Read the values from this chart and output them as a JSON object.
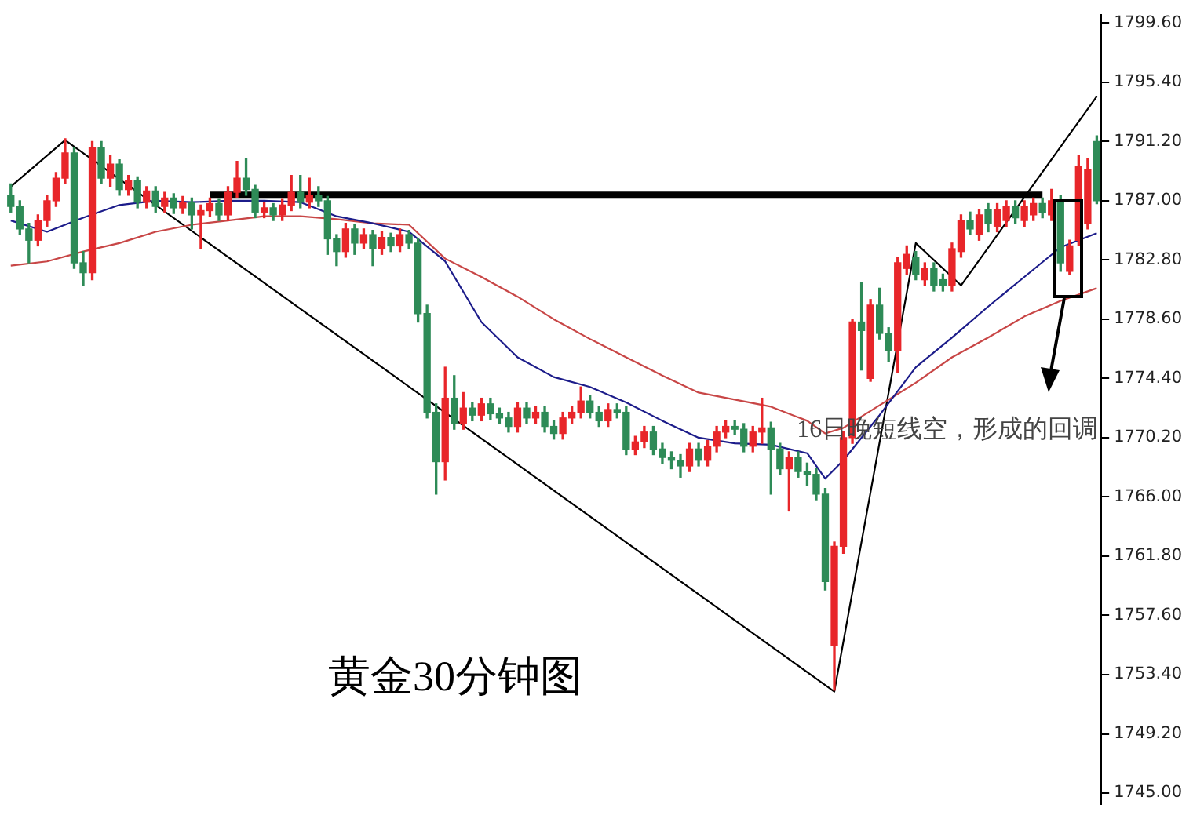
{
  "chart_data": {
    "type": "candlestick",
    "title": "黄金30分钟图",
    "annotations": [
      "16日晚短线空，形成的回调"
    ],
    "categories": [
      null,
      null,
      null,
      null,
      null,
      null,
      null,
      null,
      null,
      null,
      null,
      null,
      null,
      null,
      null,
      null,
      null,
      null,
      null,
      null,
      null,
      null,
      null,
      null,
      null,
      null,
      null,
      null,
      null,
      null,
      null,
      null,
      null,
      null,
      null,
      null,
      null,
      null,
      null,
      null,
      null,
      null,
      null,
      null,
      null,
      null,
      null,
      null,
      null,
      null,
      null,
      null,
      null,
      null,
      null,
      null,
      null,
      null,
      null,
      null,
      null,
      null,
      null,
      null,
      null,
      null,
      null,
      null,
      null,
      null,
      null,
      null,
      null,
      null,
      null,
      null,
      null,
      null,
      null,
      null,
      null,
      null,
      null,
      null,
      null,
      null,
      null,
      null,
      null,
      null,
      null,
      null,
      null,
      null,
      null,
      null,
      null,
      null,
      null,
      null,
      null,
      null,
      null,
      null,
      null,
      null,
      null,
      null,
      null,
      null,
      null,
      null,
      null,
      null,
      null,
      null,
      null,
      null,
      null,
      null,
      null
    ],
    "ohlc": [
      [
        1787.4,
        1788.2,
        1786.2,
        1786.6
      ],
      [
        1786.6,
        1787.0,
        1784.6,
        1785.0
      ],
      [
        1785.0,
        1785.4,
        1782.6,
        1784.2
      ],
      [
        1784.2,
        1786.0,
        1783.8,
        1785.6
      ],
      [
        1785.6,
        1787.4,
        1785.2,
        1787.0
      ],
      [
        1787.0,
        1789.0,
        1786.6,
        1788.6
      ],
      [
        1788.6,
        1791.4,
        1788.2,
        1790.4
      ],
      [
        1790.4,
        1790.8,
        1782.2,
        1782.6
      ],
      [
        1782.6,
        1783.4,
        1781.0,
        1781.9
      ],
      [
        1781.9,
        1791.2,
        1781.4,
        1790.8
      ],
      [
        1790.8,
        1791.2,
        1788.2,
        1788.6
      ],
      [
        1788.6,
        1790.2,
        1788.0,
        1789.6
      ],
      [
        1789.6,
        1789.9,
        1787.4,
        1787.8
      ],
      [
        1787.8,
        1788.8,
        1787.4,
        1788.4
      ],
      [
        1788.4,
        1788.7,
        1786.5,
        1786.9
      ],
      [
        1786.9,
        1788.0,
        1786.5,
        1787.7
      ],
      [
        1787.7,
        1788.0,
        1786.2,
        1786.6
      ],
      [
        1786.6,
        1787.6,
        1786.2,
        1787.2
      ],
      [
        1787.2,
        1787.5,
        1786.1,
        1786.5
      ],
      [
        1786.5,
        1787.3,
        1786.1,
        1786.9
      ],
      [
        1786.9,
        1787.2,
        1785.0,
        1786.0
      ],
      [
        1786.0,
        1786.7,
        1783.6,
        1786.3
      ],
      [
        1786.3,
        1787.2,
        1785.9,
        1786.8
      ],
      [
        1786.8,
        1787.1,
        1785.6,
        1786.0
      ],
      [
        1786.0,
        1788.0,
        1785.6,
        1787.6
      ],
      [
        1787.6,
        1789.8,
        1787.2,
        1788.6
      ],
      [
        1788.6,
        1790.0,
        1787.4,
        1787.8
      ],
      [
        1787.8,
        1788.1,
        1785.8,
        1786.2
      ],
      [
        1786.2,
        1786.9,
        1785.8,
        1786.5
      ],
      [
        1786.5,
        1786.8,
        1785.6,
        1786.0
      ],
      [
        1786.0,
        1787.1,
        1785.6,
        1786.7
      ],
      [
        1786.7,
        1788.8,
        1786.3,
        1787.6
      ],
      [
        1787.6,
        1788.8,
        1786.5,
        1786.9
      ],
      [
        1786.9,
        1788.6,
        1786.5,
        1787.4
      ],
      [
        1787.4,
        1788.0,
        1786.6,
        1787.0
      ],
      [
        1787.0,
        1787.3,
        1783.2,
        1784.3
      ],
      [
        1784.3,
        1784.6,
        1782.4,
        1783.4
      ],
      [
        1783.4,
        1785.4,
        1783.0,
        1785.0
      ],
      [
        1785.0,
        1785.3,
        1783.2,
        1784.0
      ],
      [
        1784.0,
        1785.0,
        1783.6,
        1784.6
      ],
      [
        1784.6,
        1784.9,
        1782.4,
        1783.6
      ],
      [
        1783.6,
        1784.8,
        1783.2,
        1784.4
      ],
      [
        1784.4,
        1784.7,
        1783.4,
        1783.8
      ],
      [
        1783.8,
        1785.0,
        1783.4,
        1784.6
      ],
      [
        1784.6,
        1784.9,
        1783.6,
        1784.0
      ],
      [
        1784.0,
        1784.3,
        1778.4,
        1779.0
      ],
      [
        1779.0,
        1779.6,
        1771.6,
        1772.0
      ],
      [
        1772.0,
        1772.6,
        1766.2,
        1768.5
      ],
      [
        1768.5,
        1775.2,
        1767.2,
        1773.0
      ],
      [
        1773.0,
        1774.6,
        1770.8,
        1771.2
      ],
      [
        1771.2,
        1773.4,
        1770.8,
        1772.3
      ],
      [
        1772.3,
        1772.7,
        1771.4,
        1771.8
      ],
      [
        1771.8,
        1773.0,
        1771.4,
        1772.6
      ],
      [
        1772.6,
        1773.0,
        1771.5,
        1771.9
      ],
      [
        1771.9,
        1772.3,
        1771.2,
        1771.6
      ],
      [
        1771.6,
        1772.0,
        1770.6,
        1771.0
      ],
      [
        1771.0,
        1772.7,
        1770.6,
        1772.3
      ],
      [
        1772.3,
        1772.7,
        1771.2,
        1771.6
      ],
      [
        1771.6,
        1772.4,
        1771.2,
        1772.0
      ],
      [
        1772.0,
        1772.4,
        1770.6,
        1771.0
      ],
      [
        1771.0,
        1771.4,
        1770.1,
        1770.5
      ],
      [
        1770.5,
        1772.0,
        1770.1,
        1771.6
      ],
      [
        1771.6,
        1772.4,
        1771.2,
        1772.0
      ],
      [
        1772.0,
        1773.8,
        1771.6,
        1772.8
      ],
      [
        1772.8,
        1773.2,
        1771.6,
        1772.0
      ],
      [
        1772.0,
        1772.4,
        1771.0,
        1771.4
      ],
      [
        1771.4,
        1772.6,
        1771.0,
        1772.2
      ],
      [
        1772.2,
        1772.6,
        1771.6,
        1772.0
      ],
      [
        1772.0,
        1772.4,
        1769.0,
        1769.4
      ],
      [
        1769.4,
        1770.3,
        1769.0,
        1769.9
      ],
      [
        1769.9,
        1771.0,
        1769.5,
        1770.6
      ],
      [
        1770.6,
        1771.0,
        1769.0,
        1769.4
      ],
      [
        1769.4,
        1769.8,
        1768.4,
        1768.8
      ],
      [
        1768.8,
        1769.2,
        1768.0,
        1768.6
      ],
      [
        1768.6,
        1769.0,
        1767.4,
        1768.2
      ],
      [
        1768.2,
        1769.8,
        1767.8,
        1769.4
      ],
      [
        1769.4,
        1769.8,
        1768.2,
        1768.6
      ],
      [
        1768.6,
        1770.0,
        1768.2,
        1769.6
      ],
      [
        1769.6,
        1771.0,
        1769.2,
        1770.6
      ],
      [
        1770.6,
        1771.4,
        1770.2,
        1771.0
      ],
      [
        1771.0,
        1771.4,
        1770.4,
        1770.8
      ],
      [
        1770.8,
        1771.2,
        1769.2,
        1769.6
      ],
      [
        1769.6,
        1771.0,
        1769.2,
        1770.6
      ],
      [
        1770.6,
        1773.0,
        1769.8,
        1770.9
      ],
      [
        1770.9,
        1771.3,
        1766.2,
        1769.4
      ],
      [
        1769.4,
        1769.8,
        1767.6,
        1768.0
      ],
      [
        1768.0,
        1769.2,
        1765.0,
        1768.8
      ],
      [
        1768.8,
        1769.2,
        1767.4,
        1767.8
      ],
      [
        1767.8,
        1768.4,
        1766.8,
        1767.6
      ],
      [
        1767.6,
        1768.0,
        1765.8,
        1766.2
      ],
      [
        1766.2,
        1766.6,
        1759.4,
        1760.0
      ],
      [
        1755.5,
        1762.8,
        1752.3,
        1762.5
      ],
      [
        1762.5,
        1770.6,
        1762.0,
        1770.2
      ],
      [
        1770.2,
        1778.6,
        1769.8,
        1778.4
      ],
      [
        1778.4,
        1781.2,
        1775.0,
        1777.8
      ],
      [
        1774.4,
        1780.0,
        1774.2,
        1779.6
      ],
      [
        1779.6,
        1780.8,
        1777.2,
        1777.6
      ],
      [
        1777.6,
        1778.0,
        1775.6,
        1776.4
      ],
      [
        1776.4,
        1783.0,
        1774.8,
        1782.6
      ],
      [
        1782.2,
        1783.8,
        1781.8,
        1783.2
      ],
      [
        1783.0,
        1783.4,
        1781.4,
        1781.8
      ],
      [
        1781.4,
        1782.6,
        1781.0,
        1782.2
      ],
      [
        1782.2,
        1782.6,
        1780.6,
        1781.0
      ],
      [
        1781.4,
        1781.8,
        1780.6,
        1781.0
      ],
      [
        1781.0,
        1784.0,
        1780.6,
        1783.6
      ],
      [
        1783.4,
        1786.0,
        1783.0,
        1785.6
      ],
      [
        1785.6,
        1786.2,
        1784.6,
        1785.0
      ],
      [
        1784.6,
        1786.4,
        1784.2,
        1786.0
      ],
      [
        1786.4,
        1786.8,
        1784.8,
        1785.4
      ],
      [
        1785.2,
        1786.8,
        1784.8,
        1786.4
      ],
      [
        1785.6,
        1787.0,
        1785.2,
        1786.6
      ],
      [
        1786.6,
        1787.0,
        1785.4,
        1785.8
      ],
      [
        1785.6,
        1787.0,
        1785.2,
        1786.6
      ],
      [
        1786.0,
        1787.2,
        1785.6,
        1786.8
      ],
      [
        1786.8,
        1787.2,
        1785.8,
        1786.2
      ],
      [
        1786.0,
        1787.8,
        1785.6,
        1787.0
      ],
      [
        1787.0,
        1787.4,
        1782.0,
        1782.6
      ],
      [
        1782.0,
        1784.2,
        1781.8,
        1783.8
      ],
      [
        1784.2,
        1790.2,
        1783.8,
        1789.4
      ],
      [
        1785.4,
        1790.0,
        1785.0,
        1789.2
      ],
      [
        1791.2,
        1791.6,
        1786.8,
        1787.0
      ]
    ],
    "series": [
      {
        "type": "line",
        "color": "#1c1c8a",
        "values": [
          1785.6,
          null,
          null,
          null,
          1784.8,
          null,
          null,
          null,
          1785.8,
          null,
          null,
          null,
          1786.7,
          null,
          null,
          null,
          1787.0,
          null,
          null,
          null,
          1786.9,
          null,
          null,
          null,
          1787.0,
          null,
          null,
          null,
          1787.0,
          null,
          null,
          null,
          1786.9,
          null,
          null,
          null,
          1785.9,
          null,
          null,
          null,
          1785.4,
          null,
          null,
          null,
          1784.8,
          null,
          null,
          null,
          1782.7,
          null,
          null,
          null,
          1778.4,
          null,
          null,
          null,
          1775.9,
          null,
          null,
          null,
          1774.5,
          null,
          null,
          null,
          1773.8,
          null,
          null,
          null,
          1772.7,
          null,
          null,
          null,
          1771.4,
          null,
          null,
          null,
          1770.2,
          null,
          null,
          null,
          1769.8,
          null,
          null,
          null,
          1769.7,
          null,
          null,
          null,
          1769.1,
          null,
          1767.3,
          null,
          1768.6,
          null,
          null,
          null,
          1771.8,
          null,
          null,
          null,
          1775.2,
          null,
          null,
          null,
          1777.3,
          null,
          null,
          null,
          1779.5,
          null,
          null,
          null,
          1781.6,
          null,
          null,
          null,
          1783.7,
          null,
          null,
          null,
          1784.7
        ]
      },
      {
        "type": "line",
        "color": "#c84646",
        "values": [
          1782.4,
          null,
          null,
          null,
          1782.7,
          null,
          null,
          null,
          1783.4,
          null,
          null,
          null,
          1784.0,
          null,
          null,
          null,
          1784.8,
          null,
          null,
          null,
          1785.3,
          null,
          null,
          null,
          1785.6,
          null,
          null,
          null,
          1785.9,
          null,
          null,
          null,
          1785.9,
          null,
          null,
          null,
          1785.7,
          null,
          null,
          null,
          1785.4,
          null,
          null,
          null,
          1785.3,
          null,
          null,
          null,
          1782.9,
          null,
          null,
          null,
          1781.6,
          null,
          null,
          null,
          1780.2,
          null,
          null,
          null,
          1778.6,
          null,
          null,
          null,
          1777.2,
          null,
          null,
          null,
          1775.9,
          null,
          null,
          null,
          1774.6,
          null,
          null,
          null,
          1773.4,
          null,
          null,
          null,
          1772.9,
          null,
          null,
          null,
          1772.4,
          null,
          null,
          null,
          1771.4,
          null,
          1770.5,
          null,
          1770.9,
          null,
          null,
          null,
          1772.5,
          null,
          null,
          null,
          1774.1,
          null,
          null,
          null,
          1775.9,
          null,
          null,
          null,
          1777.3,
          null,
          null,
          null,
          1778.8,
          null,
          null,
          null,
          1779.9,
          null,
          null,
          null,
          1780.8
        ]
      },
      {
        "type": "line",
        "color": "#000000",
        "values": [
          1788.0,
          null,
          null,
          null,
          null,
          null,
          1791.3,
          null,
          null,
          null,
          null,
          null,
          null,
          null,
          null,
          null,
          null,
          null,
          null,
          null,
          null,
          null,
          null,
          null,
          null,
          null,
          null,
          null,
          null,
          null,
          null,
          null,
          null,
          null,
          null,
          null,
          null,
          null,
          null,
          null,
          null,
          null,
          null,
          null,
          null,
          null,
          null,
          null,
          null,
          null,
          null,
          null,
          null,
          null,
          null,
          null,
          null,
          null,
          null,
          null,
          null,
          null,
          null,
          null,
          null,
          null,
          null,
          null,
          null,
          null,
          null,
          null,
          null,
          null,
          null,
          null,
          null,
          null,
          null,
          null,
          null,
          null,
          null,
          null,
          null,
          null,
          null,
          null,
          null,
          null,
          null,
          1752.2,
          null,
          null,
          null,
          null,
          null,
          null,
          null,
          null,
          1784.0,
          null,
          null,
          null,
          null,
          1781.0,
          null,
          null,
          null,
          null,
          null,
          null,
          null,
          null,
          null,
          null,
          null,
          null,
          null,
          null,
          1794.4
        ]
      },
      {
        "type": "line",
        "color": "#000000",
        "values": [
          null,
          null,
          null,
          null,
          null,
          null,
          null,
          null,
          null,
          null,
          null,
          null,
          null,
          null,
          null,
          null,
          null,
          null,
          null,
          null,
          null,
          null,
          1787.4,
          null,
          null,
          null,
          null,
          null,
          null,
          null,
          null,
          null,
          null,
          null,
          null,
          null,
          null,
          null,
          null,
          null,
          null,
          null,
          null,
          null,
          null,
          null,
          null,
          null,
          null,
          null,
          null,
          null,
          null,
          null,
          null,
          null,
          null,
          null,
          null,
          null,
          null,
          null,
          null,
          null,
          null,
          null,
          null,
          null,
          null,
          null,
          null,
          null,
          null,
          null,
          null,
          null,
          null,
          null,
          null,
          null,
          null,
          null,
          null,
          null,
          null,
          null,
          null,
          null,
          null,
          null,
          null,
          null,
          null,
          null,
          null,
          null,
          null,
          null,
          null,
          null,
          null,
          null,
          null,
          null,
          null,
          null,
          null,
          null,
          null,
          null,
          null,
          null,
          null,
          null,
          1787.4,
          null,
          null,
          null,
          null,
          null,
          null
        ]
      }
    ],
    "ylim": [
      1744.2,
      1800.2
    ],
    "yticks": [
      {
        "value": 1745.0,
        "label": "1745.00"
      },
      {
        "value": 1749.2,
        "label": "1749.20"
      },
      {
        "value": 1753.4,
        "label": "1753.40"
      },
      {
        "value": 1757.6,
        "label": "1757.60"
      },
      {
        "value": 1761.8,
        "label": "1761.80"
      },
      {
        "value": 1766.0,
        "label": "1766.00"
      },
      {
        "value": 1770.2,
        "label": "1770.20"
      },
      {
        "value": 1774.4,
        "label": "1774.40"
      },
      {
        "value": 1778.6,
        "label": "1778.60"
      },
      {
        "value": 1782.8,
        "label": "1782.80"
      },
      {
        "value": 1787.0,
        "label": "1787.00"
      },
      {
        "value": 1791.2,
        "label": "1791.20"
      },
      {
        "value": 1795.4,
        "label": "1795.40"
      },
      {
        "value": 1799.6,
        "label": "1799.60"
      }
    ],
    "tick_labels": "y",
    "grid": false,
    "legend": false,
    "marker": "none"
  }
}
